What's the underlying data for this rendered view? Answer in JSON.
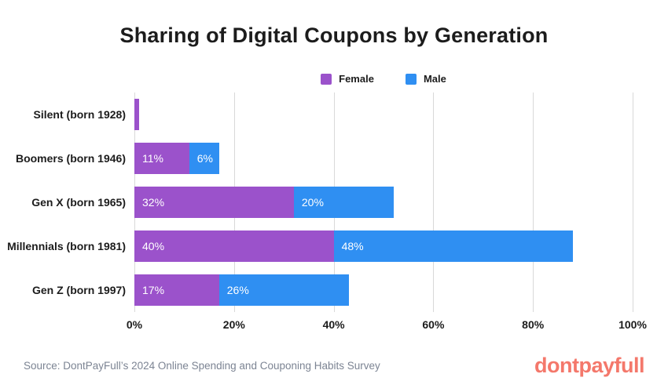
{
  "title": "Sharing of Digital Coupons by Generation",
  "footer": {
    "source": "Source: DontPayFull’s 2024 Online Spending and Couponing Habits Survey",
    "logo": "dontpayfull",
    "logo_color": "#f4786b"
  },
  "colors": {
    "female": "#9b52cb",
    "male": "#2f8ff2",
    "gridline": "#d9d9d9",
    "text": "#1c1c1c",
    "source_text": "#7c8493"
  },
  "chart_data": {
    "type": "bar",
    "orientation": "horizontal",
    "stacked": true,
    "title": "Sharing of Digital Coupons by Generation",
    "categories": [
      "Silent (born 1928)",
      "Boomers (born 1946)",
      "Gen X (born 1965)",
      "Millennials (born 1981)",
      "Gen Z (born 1997)"
    ],
    "series": [
      {
        "name": "Female",
        "color": "#9b52cb",
        "values": [
          1,
          11,
          32,
          40,
          17
        ],
        "labels": [
          "",
          "11%",
          "32%",
          "40%",
          "17%"
        ]
      },
      {
        "name": "Male",
        "color": "#2f8ff2",
        "values": [
          0,
          6,
          20,
          48,
          26
        ],
        "labels": [
          "",
          "6%",
          "20%",
          "48%",
          "26%"
        ]
      }
    ],
    "xlabel": "",
    "ylabel": "",
    "xlim": [
      0,
      100
    ],
    "xticks": [
      "0%",
      "20%",
      "40%",
      "60%",
      "80%",
      "100%"
    ],
    "grid": true,
    "legend_position": "top"
  }
}
